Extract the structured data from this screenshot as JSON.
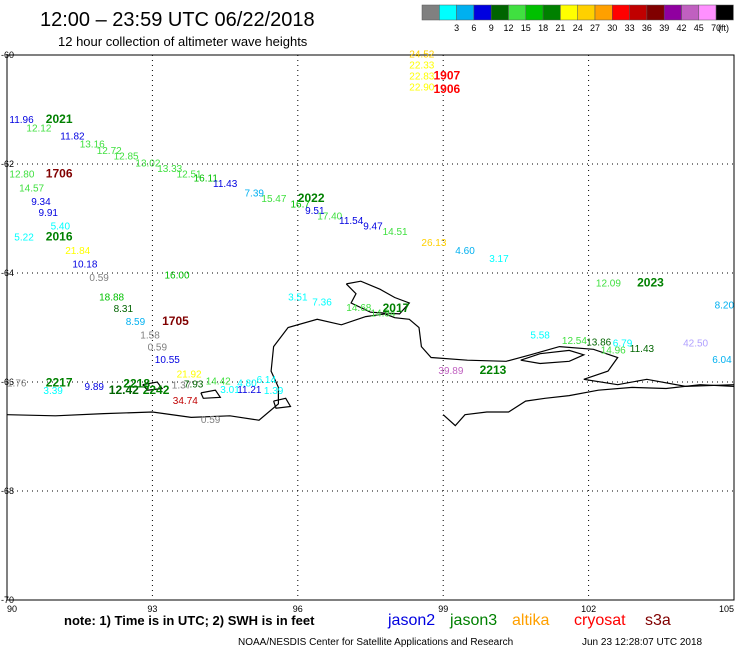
{
  "header": {
    "title": "12:00 – 23:59 UTC 06/22/2018",
    "subtitle": "12 hour collection of altimeter wave heights",
    "scale_unit": "(ft)"
  },
  "color_scale": [
    {
      "label": "",
      "color": "#808080"
    },
    {
      "label": "3",
      "color": "#00ffff"
    },
    {
      "label": "6",
      "color": "#00b0f0"
    },
    {
      "label": "9",
      "color": "#0000e0"
    },
    {
      "label": "12",
      "color": "#006400"
    },
    {
      "label": "15",
      "color": "#40e040"
    },
    {
      "label": "18",
      "color": "#00c000"
    },
    {
      "label": "21",
      "color": "#008000"
    },
    {
      "label": "24",
      "color": "#ffff00"
    },
    {
      "label": "27",
      "color": "#ffd000"
    },
    {
      "label": "30",
      "color": "#ffa000"
    },
    {
      "label": "33",
      "color": "#ff0000"
    },
    {
      "label": "36",
      "color": "#c00000"
    },
    {
      "label": "39",
      "color": "#800000"
    },
    {
      "label": "42",
      "color": "#9000a0"
    },
    {
      "label": "45",
      "color": "#c060c0"
    },
    {
      "label": "70",
      "color": "#ff90ff"
    },
    {
      "label": "",
      "color": "#000000"
    }
  ],
  "map": {
    "lon_range": [
      90,
      105
    ],
    "lat_range": [
      -70,
      -60
    ],
    "x_ticks": [
      {
        "value": 90,
        "label": "90"
      },
      {
        "value": 93,
        "label": "93"
      },
      {
        "value": 96,
        "label": "96"
      },
      {
        "value": 99,
        "label": "99"
      },
      {
        "value": 102,
        "label": "102"
      },
      {
        "value": 105,
        "label": "105"
      }
    ],
    "y_ticks": [
      {
        "value": -60,
        "label": "-60"
      },
      {
        "value": -62,
        "label": "-62"
      },
      {
        "value": -64,
        "label": "-64"
      },
      {
        "value": -66,
        "label": "-66"
      },
      {
        "value": -68,
        "label": "-68"
      },
      {
        "value": -70,
        "label": "-70"
      }
    ]
  },
  "labels": [
    {
      "text": "24.52",
      "lon": 98.3,
      "lat": -60.05,
      "color": "#ffd000",
      "size": 10
    },
    {
      "text": "22.33",
      "lon": 98.3,
      "lat": -60.25,
      "color": "#ffff00",
      "size": 10
    },
    {
      "text": "22.83",
      "lon": 98.3,
      "lat": -60.45,
      "color": "#ffff00",
      "size": 10
    },
    {
      "text": "22.90",
      "lon": 98.3,
      "lat": -60.65,
      "color": "#ffff00",
      "size": 10
    },
    {
      "text": "1907",
      "lon": 98.8,
      "lat": -60.45,
      "color": "#ff0000",
      "size": 12,
      "bold": true
    },
    {
      "text": "1906",
      "lon": 98.8,
      "lat": -60.7,
      "color": "#ff0000",
      "size": 12,
      "bold": true
    },
    {
      "text": "11.96",
      "lon": 90.05,
      "lat": -61.25,
      "color": "#0000e0",
      "size": 10
    },
    {
      "text": "2021",
      "lon": 90.8,
      "lat": -61.25,
      "color": "#008000",
      "size": 12,
      "bold": true
    },
    {
      "text": "12.12",
      "lon": 90.4,
      "lat": -61.4,
      "color": "#40e040",
      "size": 10
    },
    {
      "text": "11.82",
      "lon": 91.1,
      "lat": -61.55,
      "color": "#0000e0",
      "size": 10
    },
    {
      "text": "13.16",
      "lon": 91.5,
      "lat": -61.7,
      "color": "#40e040",
      "size": 10
    },
    {
      "text": "12.72",
      "lon": 91.85,
      "lat": -61.82,
      "color": "#40e040",
      "size": 10
    },
    {
      "text": "12.85",
      "lon": 92.2,
      "lat": -61.92,
      "color": "#40e040",
      "size": 10
    },
    {
      "text": "13.02",
      "lon": 92.65,
      "lat": -62.05,
      "color": "#40e040",
      "size": 10
    },
    {
      "text": "13.33",
      "lon": 93.1,
      "lat": -62.15,
      "color": "#40e040",
      "size": 10
    },
    {
      "text": "12.51",
      "lon": 93.5,
      "lat": -62.25,
      "color": "#40e040",
      "size": 10
    },
    {
      "text": "16.11",
      "lon": 93.85,
      "lat": -62.32,
      "color": "#00c000",
      "size": 10
    },
    {
      "text": "11.43",
      "lon": 94.25,
      "lat": -62.42,
      "color": "#0000e0",
      "size": 10
    },
    {
      "text": "12.80",
      "lon": 90.05,
      "lat": -62.25,
      "color": "#40e040",
      "size": 10
    },
    {
      "text": "1706",
      "lon": 90.8,
      "lat": -62.25,
      "color": "#800000",
      "size": 12,
      "bold": true
    },
    {
      "text": "14.57",
      "lon": 90.25,
      "lat": -62.5,
      "color": "#40e040",
      "size": 10
    },
    {
      "text": "9.34",
      "lon": 90.5,
      "lat": -62.75,
      "color": "#0000e0",
      "size": 10
    },
    {
      "text": "9.91",
      "lon": 90.65,
      "lat": -62.95,
      "color": "#0000e0",
      "size": 10
    },
    {
      "text": "5.40",
      "lon": 90.9,
      "lat": -63.2,
      "color": "#00ffff",
      "size": 10
    },
    {
      "text": "5.22",
      "lon": 90.15,
      "lat": -63.4,
      "color": "#00ffff",
      "size": 10
    },
    {
      "text": "2016",
      "lon": 90.8,
      "lat": -63.4,
      "color": "#008000",
      "size": 12,
      "bold": true
    },
    {
      "text": "21.84",
      "lon": 91.2,
      "lat": -63.65,
      "color": "#ffff00",
      "size": 10
    },
    {
      "text": "10.18",
      "lon": 91.35,
      "lat": -63.9,
      "color": "#0000e0",
      "size": 10
    },
    {
      "text": "0.59",
      "lon": 91.7,
      "lat": -64.15,
      "color": "#808080",
      "size": 10
    },
    {
      "text": "16.00",
      "lon": 93.25,
      "lat": -64.1,
      "color": "#00c000",
      "size": 10
    },
    {
      "text": "18.88",
      "lon": 91.9,
      "lat": -64.5,
      "color": "#00c000",
      "size": 10
    },
    {
      "text": "8.31",
      "lon": 92.2,
      "lat": -64.72,
      "color": "#006400",
      "size": 10
    },
    {
      "text": "8.59",
      "lon": 92.45,
      "lat": -64.95,
      "color": "#00b0f0",
      "size": 10
    },
    {
      "text": "1705",
      "lon": 93.2,
      "lat": -64.95,
      "color": "#800000",
      "size": 12,
      "bold": true
    },
    {
      "text": "1.58",
      "lon": 92.75,
      "lat": -65.2,
      "color": "#808080",
      "size": 10
    },
    {
      "text": "0.59",
      "lon": 92.9,
      "lat": -65.42,
      "color": "#808080",
      "size": 10
    },
    {
      "text": "10.55",
      "lon": 93.05,
      "lat": -65.65,
      "color": "#0000e0",
      "size": 10
    },
    {
      "text": "21.92",
      "lon": 93.5,
      "lat": -65.92,
      "color": "#ffff00",
      "size": 10
    },
    {
      "text": "1.76",
      "lon": 90.0,
      "lat": -66.08,
      "color": "#808080",
      "size": 10
    },
    {
      "text": "2217",
      "lon": 90.8,
      "lat": -66.08,
      "color": "#008000",
      "size": 12,
      "bold": true
    },
    {
      "text": "3.39",
      "lon": 90.75,
      "lat": -66.22,
      "color": "#00ffff",
      "size": 10
    },
    {
      "text": "9.89",
      "lon": 91.6,
      "lat": -66.15,
      "color": "#0000e0",
      "size": 10
    },
    {
      "text": "12.42",
      "lon": 92.1,
      "lat": -66.22,
      "color": "#006400",
      "size": 12,
      "bold": true
    },
    {
      "text": "2218",
      "lon": 92.4,
      "lat": -66.1,
      "color": "#008000",
      "size": 12,
      "bold": true
    },
    {
      "text": "2242",
      "lon": 92.8,
      "lat": -66.22,
      "color": "#008000",
      "size": 12,
      "bold": true
    },
    {
      "text": "1.37",
      "lon": 93.4,
      "lat": -66.12,
      "color": "#808080",
      "size": 10
    },
    {
      "text": "7.93",
      "lon": 93.65,
      "lat": -66.1,
      "color": "#006400",
      "size": 10
    },
    {
      "text": "14.42",
      "lon": 94.1,
      "lat": -66.05,
      "color": "#40e040",
      "size": 10
    },
    {
      "text": "3.01",
      "lon": 94.4,
      "lat": -66.2,
      "color": "#00ffff",
      "size": 10
    },
    {
      "text": "4.80",
      "lon": 94.75,
      "lat": -66.08,
      "color": "#00ffff",
      "size": 10
    },
    {
      "text": "6.14",
      "lon": 95.15,
      "lat": -66.02,
      "color": "#00ffff",
      "size": 10
    },
    {
      "text": "11.21",
      "lon": 94.75,
      "lat": -66.2,
      "color": "#0000e0",
      "size": 10
    },
    {
      "text": "1.39",
      "lon": 95.3,
      "lat": -66.22,
      "color": "#00ffff",
      "size": 10
    },
    {
      "text": "34.74",
      "lon": 93.42,
      "lat": -66.4,
      "color": "#c00000",
      "size": 10
    },
    {
      "text": "0.59",
      "lon": 94.0,
      "lat": -66.75,
      "color": "#808080",
      "size": 10
    },
    {
      "text": "7.39",
      "lon": 94.9,
      "lat": -62.6,
      "color": "#00b0f0",
      "size": 10
    },
    {
      "text": "15.47",
      "lon": 95.25,
      "lat": -62.7,
      "color": "#40e040",
      "size": 10
    },
    {
      "text": "2022",
      "lon": 96.0,
      "lat": -62.7,
      "color": "#008000",
      "size": 12,
      "bold": true
    },
    {
      "text": "16.7",
      "lon": 95.85,
      "lat": -62.8,
      "color": "#00c000",
      "size": 10
    },
    {
      "text": "9.51",
      "lon": 96.15,
      "lat": -62.92,
      "color": "#0000e0",
      "size": 10
    },
    {
      "text": "17.40",
      "lon": 96.4,
      "lat": -63.02,
      "color": "#40e040",
      "size": 10
    },
    {
      "text": "11.54",
      "lon": 96.85,
      "lat": -63.1,
      "color": "#0000e0",
      "size": 10
    },
    {
      "text": "9.47",
      "lon": 97.35,
      "lat": -63.2,
      "color": "#0000e0",
      "size": 10
    },
    {
      "text": "14.51",
      "lon": 97.75,
      "lat": -63.3,
      "color": "#40e040",
      "size": 10
    },
    {
      "text": "26.13",
      "lon": 98.55,
      "lat": -63.5,
      "color": "#ffd000",
      "size": 10
    },
    {
      "text": "4.60",
      "lon": 99.25,
      "lat": -63.65,
      "color": "#00b0f0",
      "size": 10
    },
    {
      "text": "3.17",
      "lon": 99.95,
      "lat": -63.8,
      "color": "#00ffff",
      "size": 10
    },
    {
      "text": "3.51",
      "lon": 95.8,
      "lat": -64.5,
      "color": "#00ffff",
      "size": 10
    },
    {
      "text": "7.36",
      "lon": 96.3,
      "lat": -64.6,
      "color": "#00ffff",
      "size": 10
    },
    {
      "text": "14.68",
      "lon": 97.0,
      "lat": -64.7,
      "color": "#40e040",
      "size": 10
    },
    {
      "text": "14.84",
      "lon": 97.5,
      "lat": -64.8,
      "color": "#40e040",
      "size": 10
    },
    {
      "text": "2017",
      "lon": 97.75,
      "lat": -64.72,
      "color": "#008000",
      "size": 12,
      "bold": true
    },
    {
      "text": "39.89",
      "lon": 98.9,
      "lat": -65.85,
      "color": "#c060c0",
      "size": 10
    },
    {
      "text": "2213",
      "lon": 99.75,
      "lat": -65.85,
      "color": "#008000",
      "size": 12,
      "bold": true
    },
    {
      "text": "5.58",
      "lon": 100.8,
      "lat": -65.2,
      "color": "#00ffff",
      "size": 10
    },
    {
      "text": "12.54",
      "lon": 101.45,
      "lat": -65.3,
      "color": "#40e040",
      "size": 10
    },
    {
      "text": "13.86",
      "lon": 101.95,
      "lat": -65.33,
      "color": "#006400",
      "size": 10
    },
    {
      "text": "6.79",
      "lon": 102.5,
      "lat": -65.35,
      "color": "#00ffff",
      "size": 10
    },
    {
      "text": "14.96",
      "lon": 102.25,
      "lat": -65.48,
      "color": "#40e040",
      "size": 10
    },
    {
      "text": "11.43",
      "lon": 102.85,
      "lat": -65.45,
      "color": "#006400",
      "size": 10
    },
    {
      "text": "12.09",
      "lon": 102.15,
      "lat": -64.25,
      "color": "#40e040",
      "size": 10
    },
    {
      "text": "2023",
      "lon": 103.0,
      "lat": -64.25,
      "color": "#008000",
      "size": 12,
      "bold": true
    },
    {
      "text": "8.20",
      "lon": 104.6,
      "lat": -64.65,
      "color": "#00b0f0",
      "size": 10
    },
    {
      "text": "42.50",
      "lon": 103.95,
      "lat": -65.35,
      "color": "#b0a0ff",
      "size": 10
    },
    {
      "text": "6.04",
      "lon": 104.55,
      "lat": -65.65,
      "color": "#00b0f0",
      "size": 10
    }
  ],
  "coastlines": [
    [
      [
        90,
        -66.6
      ],
      [
        91,
        -66.62
      ],
      [
        92,
        -66.58
      ],
      [
        93,
        -66.55
      ],
      [
        93.8,
        -66.65
      ],
      [
        94.6,
        -66.62
      ],
      [
        95.2,
        -66.7
      ],
      [
        95.6,
        -66.4
      ],
      [
        95.6,
        -66.1
      ],
      [
        95.45,
        -65.8
      ],
      [
        95.5,
        -65.35
      ],
      [
        95.8,
        -65.0
      ],
      [
        96.4,
        -64.85
      ],
      [
        96.9,
        -64.95
      ],
      [
        97.4,
        -64.8
      ],
      [
        97.8,
        -64.75
      ],
      [
        98.0,
        -64.82
      ],
      [
        98.3,
        -64.85
      ],
      [
        98.5,
        -65.0
      ],
      [
        98.55,
        -65.35
      ],
      [
        98.75,
        -65.55
      ],
      [
        99.5,
        -65.6
      ],
      [
        100.3,
        -65.62
      ],
      [
        100.8,
        -65.5
      ],
      [
        101.4,
        -65.35
      ],
      [
        102.1,
        -65.4
      ],
      [
        102.6,
        -65.55
      ],
      [
        102.4,
        -65.8
      ],
      [
        101.9,
        -65.95
      ],
      [
        102.6,
        -66.05
      ],
      [
        103.2,
        -65.95
      ],
      [
        104.0,
        -66.08
      ],
      [
        105,
        -66.05
      ]
    ],
    [
      [
        99.0,
        -66.6
      ],
      [
        99.25,
        -66.8
      ],
      [
        99.45,
        -66.6
      ],
      [
        99.9,
        -66.55
      ],
      [
        100.35,
        -66.55
      ],
      [
        100.7,
        -66.35
      ],
      [
        101.1,
        -66.3
      ],
      [
        101.6,
        -66.25
      ],
      [
        102.2,
        -66.15
      ],
      [
        102.9,
        -66.1
      ],
      [
        103.6,
        -66.12
      ],
      [
        104.3,
        -66.05
      ],
      [
        105,
        -66.08
      ]
    ],
    [
      [
        97.0,
        -64.2
      ],
      [
        97.3,
        -64.15
      ],
      [
        97.7,
        -64.3
      ],
      [
        98.0,
        -64.45
      ],
      [
        98.3,
        -64.55
      ],
      [
        98.1,
        -64.75
      ],
      [
        97.5,
        -64.72
      ],
      [
        97.1,
        -64.55
      ],
      [
        97.2,
        -64.38
      ],
      [
        97.0,
        -64.2
      ]
    ],
    [
      [
        100.6,
        -65.6
      ],
      [
        101.0,
        -65.48
      ],
      [
        101.6,
        -65.42
      ],
      [
        101.9,
        -65.5
      ],
      [
        101.6,
        -65.62
      ],
      [
        101.0,
        -65.66
      ],
      [
        100.6,
        -65.6
      ]
    ],
    [
      [
        95.5,
        -66.35
      ],
      [
        95.75,
        -66.3
      ],
      [
        95.85,
        -66.45
      ],
      [
        95.55,
        -66.48
      ],
      [
        95.5,
        -66.35
      ]
    ],
    [
      [
        94.0,
        -66.2
      ],
      [
        94.3,
        -66.15
      ],
      [
        94.4,
        -66.28
      ],
      [
        94.05,
        -66.3
      ],
      [
        94.0,
        -66.2
      ]
    ],
    [
      [
        92.8,
        -66.05
      ],
      [
        93.1,
        -66.0
      ],
      [
        93.2,
        -66.12
      ],
      [
        92.9,
        -66.15
      ],
      [
        92.8,
        -66.05
      ]
    ]
  ],
  "footer": {
    "note": "note: 1) Time is in UTC; 2) SWH is in feet",
    "credit": "NOAA/NESDIS Center for Satellite Applications and Research",
    "timestamp": "Jun 23 12:28:07 UTC 2018",
    "satellites": [
      {
        "name": "jason2",
        "color": "#0000e0"
      },
      {
        "name": "jason3",
        "color": "#008000"
      },
      {
        "name": "altika",
        "color": "#ffa000"
      },
      {
        "name": "cryosat",
        "color": "#ff0000"
      },
      {
        "name": "s3a",
        "color": "#800000"
      }
    ]
  }
}
